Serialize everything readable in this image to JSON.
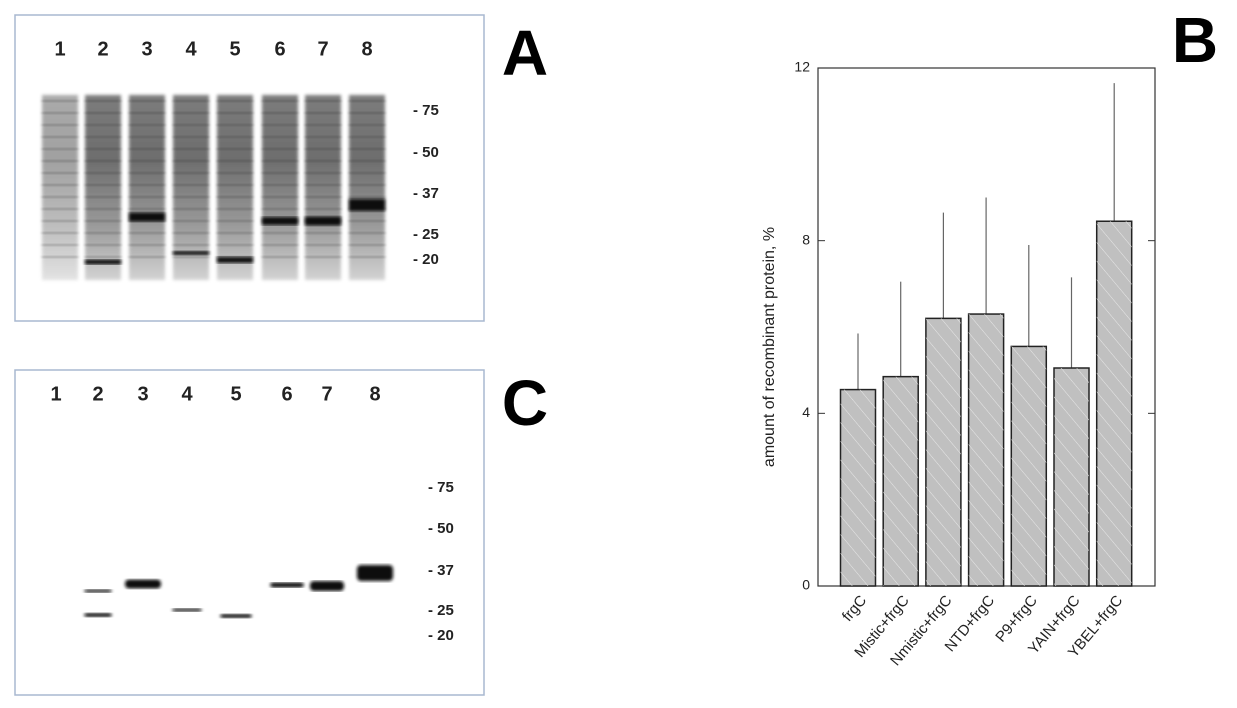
{
  "panels": {
    "A": {
      "letter": "A",
      "lanes": [
        "1",
        "2",
        "3",
        "4",
        "5",
        "6",
        "7",
        "8"
      ],
      "markers": [
        "- 75",
        "- 50",
        "- 37",
        "- 25",
        "- 20"
      ]
    },
    "C": {
      "letter": "C",
      "lanes": [
        "1",
        "2",
        "3",
        "4",
        "5",
        "6",
        "7",
        "8"
      ],
      "markers": [
        "- 75",
        "- 50",
        "- 37",
        "- 25",
        "- 20"
      ]
    }
  },
  "chart_data": {
    "type": "bar",
    "letter": "B",
    "ylabel": "amount of recombinant protein, %",
    "categories": [
      "frgC",
      "Mistic+frgC",
      "Nmistic+frgC",
      "NTD+frgC",
      "P9+frgC",
      "YAIN+frgC",
      "YBEL+frgC"
    ],
    "values": [
      4.55,
      4.85,
      6.2,
      6.3,
      5.55,
      5.05,
      8.45
    ],
    "errors": [
      1.3,
      2.2,
      2.45,
      2.7,
      2.35,
      2.1,
      3.2
    ],
    "ylim": [
      0,
      12
    ],
    "yticks": [
      0,
      4,
      8,
      12
    ],
    "color": "#c0c0c0"
  }
}
